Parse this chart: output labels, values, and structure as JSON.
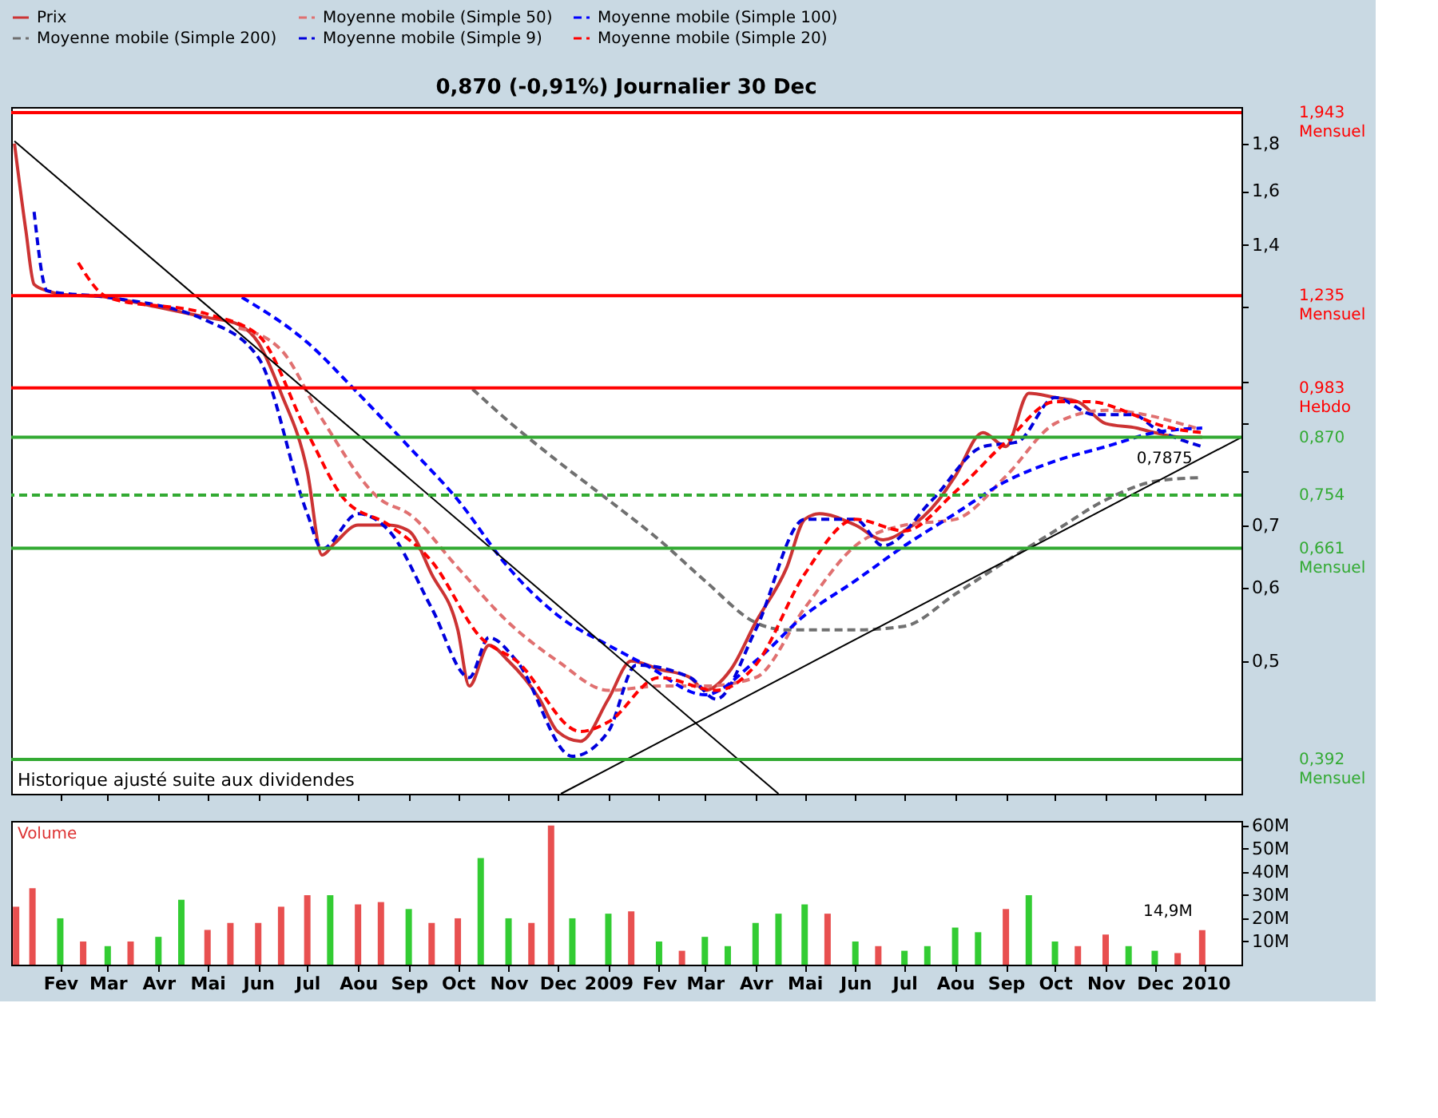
{
  "chart_data": [
    {
      "type": "line",
      "title": "0,870 (-0,91%)   Journalier  30 Dec",
      "log": "y",
      "legend": "top",
      "tick_labels": "y",
      "grid": false,
      "xlim": [
        "2008-01-02",
        "2010-01-23"
      ],
      "xticks": [
        {
          "value": "2008-02-01",
          "label": null
        },
        {
          "value": "2008-03-01",
          "label": null
        },
        {
          "value": "2008-04-01",
          "label": null
        },
        {
          "value": "2008-05-01",
          "label": null
        },
        {
          "value": "2008-06-01",
          "label": null
        },
        {
          "value": "2008-07-01",
          "label": null
        },
        {
          "value": "2008-08-01",
          "label": null
        },
        {
          "value": "2008-09-01",
          "label": null
        },
        {
          "value": "2008-10-01",
          "label": null
        },
        {
          "value": "2008-11-01",
          "label": null
        },
        {
          "value": "2008-12-01",
          "label": null
        },
        {
          "value": "2009-01-01",
          "label": null
        },
        {
          "value": "2009-02-01",
          "label": null
        },
        {
          "value": "2009-03-01",
          "label": null
        },
        {
          "value": "2009-04-01",
          "label": null
        },
        {
          "value": "2009-05-01",
          "label": null
        },
        {
          "value": "2009-06-01",
          "label": null
        },
        {
          "value": "2009-07-01",
          "label": null
        },
        {
          "value": "2009-08-01",
          "label": null
        },
        {
          "value": "2009-09-01",
          "label": null
        },
        {
          "value": "2009-10-01",
          "label": null
        },
        {
          "value": "2009-11-01",
          "label": null
        },
        {
          "value": "2009-12-01",
          "label": null
        },
        {
          "value": "2010-01-01",
          "label": null
        }
      ],
      "ylim": [
        0.36,
        1.97
      ],
      "yticks": [
        {
          "value": 0.5,
          "label": "0,5"
        },
        {
          "value": 0.6,
          "label": "0,6"
        },
        {
          "value": 0.7,
          "label": "0,7"
        },
        {
          "value": 0.8,
          "label": null
        },
        {
          "value": 0.9,
          "label": null
        },
        {
          "value": 1.0,
          "label": null
        },
        {
          "value": 1.2,
          "label": null
        },
        {
          "value": 1.4,
          "label": "1,4"
        },
        {
          "value": 1.6,
          "label": "1,6"
        },
        {
          "value": 1.8,
          "label": "1,8"
        }
      ],
      "series": [
        {
          "name": "Prix",
          "color": "#cc3333",
          "line_style": "solid",
          "x": [
            "2008-01-04",
            "2008-01-11",
            "2008-01-16",
            "2008-01-24",
            "2008-02-01",
            "2008-03-01",
            "2008-04-01",
            "2008-05-01",
            "2008-05-20",
            "2008-06-01",
            "2008-06-15",
            "2008-07-01",
            "2008-07-10",
            "2008-07-18",
            "2008-08-01",
            "2008-08-20",
            "2008-09-01",
            "2008-09-15",
            "2008-10-01",
            "2008-10-08",
            "2008-10-20",
            "2008-11-01",
            "2008-11-20",
            "2008-12-01",
            "2008-12-15",
            "2009-01-01",
            "2009-01-15",
            "2009-02-01",
            "2009-02-20",
            "2009-03-01",
            "2009-03-17",
            "2009-04-01",
            "2009-04-20",
            "2009-05-01",
            "2009-05-10",
            "2009-06-01",
            "2009-06-18",
            "2009-07-01",
            "2009-07-22",
            "2009-08-01",
            "2009-08-18",
            "2009-09-01",
            "2009-09-15",
            "2009-10-01",
            "2009-10-15",
            "2009-11-01",
            "2009-11-20",
            "2009-12-01",
            "2009-12-18",
            "2009-12-30"
          ],
          "values": [
            1.8,
            1.45,
            1.27,
            1.25,
            1.24,
            1.23,
            1.2,
            1.17,
            1.15,
            1.1,
            0.97,
            0.8,
            0.65,
            0.67,
            0.7,
            0.7,
            0.69,
            0.62,
            0.54,
            0.47,
            0.52,
            0.5,
            0.455,
            0.42,
            0.41,
            0.455,
            0.5,
            0.49,
            0.48,
            0.465,
            0.49,
            0.55,
            0.63,
            0.71,
            0.72,
            0.7,
            0.675,
            0.69,
            0.745,
            0.79,
            0.88,
            0.85,
            0.97,
            0.96,
            0.95,
            0.9,
            0.89,
            0.88,
            0.87,
            0.87
          ]
        },
        {
          "name": "Moyenne mobile (Simple 50)",
          "color": "#e07070",
          "line_style": "dashed",
          "x": [
            "2008-05-20",
            "2008-06-15",
            "2008-07-10",
            "2008-08-15",
            "2008-09-01",
            "2008-10-01",
            "2008-11-01",
            "2008-12-01",
            "2009-01-01",
            "2009-02-01",
            "2009-03-01",
            "2009-04-01",
            "2009-05-01",
            "2009-06-01",
            "2009-07-01",
            "2009-08-01",
            "2009-09-01",
            "2009-10-01",
            "2009-11-01",
            "2009-12-26"
          ],
          "values": [
            1.14,
            1.08,
            0.91,
            0.745,
            0.72,
            0.63,
            0.55,
            0.5,
            0.465,
            0.47,
            0.47,
            0.48,
            0.57,
            0.665,
            0.7,
            0.71,
            0.79,
            0.9,
            0.93,
            0.89
          ]
        },
        {
          "name": "Moyenne mobile (Simple 100)",
          "color": "#0000ff",
          "line_style": "dashed",
          "x": [
            "2008-05-22",
            "2008-07-01",
            "2008-08-01",
            "2008-09-01",
            "2008-10-01",
            "2008-11-01",
            "2008-12-01",
            "2009-01-01",
            "2009-01-24",
            "2009-03-01",
            "2009-04-01",
            "2009-05-01",
            "2009-06-01",
            "2009-07-01",
            "2009-08-01",
            "2009-09-01",
            "2009-10-01",
            "2009-11-01",
            "2009-12-01",
            "2009-12-30"
          ],
          "values": [
            1.23,
            1.1,
            0.97,
            0.85,
            0.745,
            0.63,
            0.56,
            0.52,
            0.495,
            0.46,
            0.5,
            0.56,
            0.61,
            0.665,
            0.72,
            0.78,
            0.82,
            0.85,
            0.88,
            0.89
          ]
        },
        {
          "name": "Moyenne mobile (Simple 200)",
          "color": "#707070",
          "line_style": "dashed",
          "x": [
            "2008-10-10",
            "2008-11-01",
            "2008-12-01",
            "2009-01-01",
            "2009-02-01",
            "2009-03-01",
            "2009-04-01",
            "2009-04-20",
            "2009-06-01",
            "2009-07-01",
            "2009-08-01",
            "2009-09-01",
            "2009-10-01",
            "2009-11-01",
            "2009-12-01",
            "2009-12-30"
          ],
          "values": [
            0.98,
            0.905,
            0.82,
            0.745,
            0.675,
            0.61,
            0.55,
            0.54,
            0.54,
            0.545,
            0.59,
            0.64,
            0.69,
            0.745,
            0.78,
            0.7875
          ]
        },
        {
          "name": "Moyenne mobile (Simple 9)",
          "color": "#0000dd",
          "line_style": "dashed",
          "x": [
            "2008-01-16",
            "2008-01-24",
            "2008-03-01",
            "2008-05-01",
            "2008-06-01",
            "2008-07-01",
            "2008-07-10",
            "2008-08-01",
            "2008-08-20",
            "2008-09-15",
            "2008-10-08",
            "2008-10-20",
            "2008-11-06",
            "2008-12-10",
            "2009-01-01",
            "2009-01-18",
            "2009-02-20",
            "2009-03-08",
            "2009-04-01",
            "2009-05-01",
            "2009-06-01",
            "2009-06-18",
            "2009-07-18",
            "2009-08-18",
            "2009-09-08",
            "2009-10-01",
            "2009-10-25",
            "2009-11-18",
            "2009-12-01",
            "2009-12-30"
          ],
          "values": [
            1.52,
            1.25,
            1.23,
            1.16,
            1.06,
            0.72,
            0.66,
            0.72,
            0.69,
            0.57,
            0.48,
            0.53,
            0.5,
            0.395,
            0.42,
            0.495,
            0.48,
            0.455,
            0.54,
            0.71,
            0.71,
            0.665,
            0.745,
            0.85,
            0.86,
            0.96,
            0.92,
            0.92,
            0.89,
            0.85
          ]
        },
        {
          "name": "Moyenne mobile (Simple 20)",
          "color": "#ff0000",
          "line_style": "dashed",
          "x": [
            "2008-02-12",
            "2008-03-01",
            "2008-05-01",
            "2008-06-01",
            "2008-07-01",
            "2008-07-24",
            "2008-08-20",
            "2008-09-15",
            "2008-10-15",
            "2008-11-06",
            "2008-12-15",
            "2009-01-01",
            "2009-02-01",
            "2009-03-08",
            "2009-04-01",
            "2009-05-01",
            "2009-06-01",
            "2009-07-01",
            "2009-08-01",
            "2009-09-01",
            "2009-10-01",
            "2009-10-22",
            "2009-11-18",
            "2009-12-01",
            "2009-12-30"
          ],
          "values": [
            1.34,
            1.23,
            1.18,
            1.12,
            0.88,
            0.745,
            0.7,
            0.64,
            0.53,
            0.5,
            0.42,
            0.43,
            0.48,
            0.465,
            0.495,
            0.62,
            0.71,
            0.69,
            0.76,
            0.86,
            0.95,
            0.95,
            0.92,
            0.9,
            0.88
          ]
        },
        {
          "color": "#000000",
          "line_style": "solid",
          "x": [
            "2008-01-04",
            "2009-04-15"
          ],
          "values": [
            1.81,
            0.36
          ]
        },
        {
          "color": "#000000",
          "line_style": "solid",
          "x": [
            "2008-12-03",
            "2010-01-23"
          ],
          "values": [
            0.36,
            0.87
          ]
        }
      ],
      "ref_lines": [
        {
          "axis": "y",
          "value": 1.943,
          "label": "1,943 Mensuel",
          "color": "#ff0000",
          "line_style": "solid"
        },
        {
          "axis": "y",
          "value": 1.235,
          "label": "1,235 Mensuel",
          "color": "#ff0000",
          "line_style": "solid"
        },
        {
          "axis": "y",
          "value": 0.983,
          "label": "0,983 Hebdo",
          "color": "#ff0000",
          "line_style": "solid"
        },
        {
          "axis": "y",
          "value": 0.87,
          "label": "0,870",
          "color": "#33aa33",
          "line_style": "solid"
        },
        {
          "axis": "y",
          "value": 0.754,
          "label": "0,754",
          "color": "#33aa33",
          "line_style": "dashed"
        },
        {
          "axis": "y",
          "value": 0.661,
          "label": "0,661 Mensuel",
          "color": "#33aa33",
          "line_style": "solid"
        },
        {
          "axis": "y",
          "value": 0.392,
          "label": "0,392 Mensuel",
          "color": "#33aa33",
          "line_style": "solid"
        }
      ],
      "annotations": [
        "Historique ajusté suite aux dividendes",
        {
          "text": "0,7875",
          "x": "2009-12-30",
          "y": 0.7875
        }
      ]
    },
    {
      "type": "bar",
      "title": "Volume",
      "grid": false,
      "xlim": [
        "2008-01-02",
        "2010-01-23"
      ],
      "xticks": [
        {
          "value": "2008-02-01",
          "label": "Fev"
        },
        {
          "value": "2008-03-01",
          "label": "Mar"
        },
        {
          "value": "2008-04-01",
          "label": "Avr"
        },
        {
          "value": "2008-05-01",
          "label": "Mai"
        },
        {
          "value": "2008-06-01",
          "label": "Jun"
        },
        {
          "value": "2008-07-01",
          "label": "Jul"
        },
        {
          "value": "2008-08-01",
          "label": "Aou"
        },
        {
          "value": "2008-09-01",
          "label": "Sep"
        },
        {
          "value": "2008-10-01",
          "label": "Oct"
        },
        {
          "value": "2008-11-01",
          "label": "Nov"
        },
        {
          "value": "2008-12-01",
          "label": "Dec"
        },
        {
          "value": "2009-01-01",
          "label": "2009"
        },
        {
          "value": "2009-02-01",
          "label": "Fev"
        },
        {
          "value": "2009-03-01",
          "label": "Mar"
        },
        {
          "value": "2009-04-01",
          "label": "Avr"
        },
        {
          "value": "2009-05-01",
          "label": "Mai"
        },
        {
          "value": "2009-06-01",
          "label": "Jun"
        },
        {
          "value": "2009-07-01",
          "label": "Jul"
        },
        {
          "value": "2009-08-01",
          "label": "Aou"
        },
        {
          "value": "2009-09-01",
          "label": "Sep"
        },
        {
          "value": "2009-10-01",
          "label": "Oct"
        },
        {
          "value": "2009-11-01",
          "label": "Nov"
        },
        {
          "value": "2009-12-01",
          "label": "Dec"
        },
        {
          "value": "2010-01-01",
          "label": "2010"
        }
      ],
      "ylim": [
        0,
        62
      ],
      "yticks": [
        {
          "value": 10,
          "label": "10M"
        },
        {
          "value": 20,
          "label": "20M"
        },
        {
          "value": 30,
          "label": "30M"
        },
        {
          "value": 40,
          "label": "40M"
        },
        {
          "value": 50,
          "label": "50M"
        },
        {
          "value": 60,
          "label": "60M"
        }
      ],
      "x": [
        "2008-01-05",
        "2008-01-15",
        "2008-02-01",
        "2008-02-15",
        "2008-03-01",
        "2008-03-15",
        "2008-04-01",
        "2008-04-15",
        "2008-05-01",
        "2008-05-15",
        "2008-06-01",
        "2008-06-15",
        "2008-07-01",
        "2008-07-15",
        "2008-08-01",
        "2008-08-15",
        "2008-09-01",
        "2008-09-15",
        "2008-10-01",
        "2008-10-15",
        "2008-11-01",
        "2008-11-15",
        "2008-11-27",
        "2008-12-10",
        "2009-01-01",
        "2009-01-15",
        "2009-02-01",
        "2009-02-15",
        "2009-03-01",
        "2009-03-15",
        "2009-04-01",
        "2009-04-15",
        "2009-05-01",
        "2009-05-15",
        "2009-06-01",
        "2009-06-15",
        "2009-07-01",
        "2009-07-15",
        "2009-08-01",
        "2009-08-15",
        "2009-09-01",
        "2009-09-15",
        "2009-10-01",
        "2009-10-15",
        "2009-11-01",
        "2009-11-15",
        "2009-12-01",
        "2009-12-15",
        "2009-12-30"
      ],
      "values": [
        25,
        33,
        20,
        10,
        8,
        10,
        12,
        28,
        15,
        18,
        18,
        25,
        30,
        30,
        26,
        27,
        24,
        18,
        20,
        46,
        20,
        18,
        60,
        20,
        22,
        23,
        10,
        6,
        12,
        8,
        18,
        22,
        26,
        22,
        10,
        8,
        6,
        8,
        16,
        14,
        24,
        30,
        10,
        8,
        13,
        8,
        6,
        5,
        14.9
      ],
      "colors": [
        "#e85050",
        "#e85050",
        "#33cc33",
        "#e85050",
        "#33cc33",
        "#e85050",
        "#33cc33",
        "#33cc33",
        "#e85050",
        "#e85050",
        "#e85050",
        "#e85050",
        "#e85050",
        "#33cc33",
        "#e85050",
        "#e85050",
        "#33cc33",
        "#e85050",
        "#e85050",
        "#33cc33",
        "#33cc33",
        "#e85050",
        "#e85050",
        "#33cc33",
        "#33cc33",
        "#e85050",
        "#33cc33",
        "#e85050",
        "#33cc33",
        "#33cc33",
        "#33cc33",
        "#33cc33",
        "#33cc33",
        "#e85050",
        "#33cc33",
        "#e85050",
        "#33cc33",
        "#33cc33",
        "#33cc33",
        "#33cc33",
        "#e85050",
        "#33cc33",
        "#33cc33",
        "#e85050",
        "#e85050",
        "#33cc33",
        "#33cc33",
        "#e85050",
        "#e85050"
      ],
      "annotations": [
        {
          "text": "14,9M",
          "x": "2009-12-30",
          "y": 14.9
        }
      ]
    }
  ]
}
